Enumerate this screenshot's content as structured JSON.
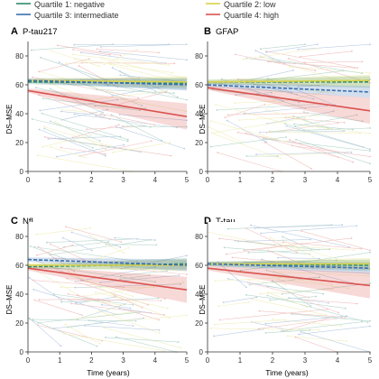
{
  "legend": {
    "items": [
      {
        "label": "Quartile 1: negative",
        "color": "#2e8b6e"
      },
      {
        "label": "Quartile 2: low",
        "color": "#d8d24a"
      },
      {
        "label": "Quartile 3: intermediate",
        "color": "#3a6fb0"
      },
      {
        "label": "Quartile 4: high",
        "color": "#d9534f"
      }
    ]
  },
  "x_axis_label": "Time (years)",
  "y_axis_label": "DS–MSE",
  "chart_data": [
    {
      "type": "line",
      "letter": "A",
      "title": "P-tau217",
      "xlim": [
        0,
        5
      ],
      "ylim": [
        0,
        90
      ],
      "xticks": [
        0,
        1,
        2,
        3,
        4,
        5
      ],
      "yticks": [
        0,
        20,
        40,
        60,
        80
      ],
      "series": [
        {
          "name": "Quartile 1: negative",
          "color": "#2e8b6e",
          "x": [
            0,
            5
          ],
          "values": [
            62,
            61
          ]
        },
        {
          "name": "Quartile 2: low",
          "color": "#d8d24a",
          "x": [
            0,
            5
          ],
          "values": [
            63,
            62
          ]
        },
        {
          "name": "Quartile 3: intermediate",
          "color": "#3a6fb0",
          "x": [
            0,
            5
          ],
          "values": [
            63,
            60
          ]
        },
        {
          "name": "Quartile 4: high",
          "color": "#d9534f",
          "x": [
            0,
            5
          ],
          "values": [
            56,
            38
          ]
        }
      ]
    },
    {
      "type": "line",
      "letter": "B",
      "title": "GFAP",
      "xlim": [
        0,
        5
      ],
      "ylim": [
        0,
        90
      ],
      "xticks": [
        0,
        1,
        2,
        3,
        4,
        5
      ],
      "yticks": [
        0,
        20,
        40,
        60,
        80
      ],
      "series": [
        {
          "name": "Quartile 1: negative",
          "color": "#2e8b6e",
          "x": [
            0,
            5
          ],
          "values": [
            62,
            62
          ]
        },
        {
          "name": "Quartile 2: low",
          "color": "#d8d24a",
          "x": [
            0,
            5
          ],
          "values": [
            62,
            63
          ]
        },
        {
          "name": "Quartile 3: intermediate",
          "color": "#3a6fb0",
          "x": [
            0,
            5
          ],
          "values": [
            60,
            55
          ]
        },
        {
          "name": "Quartile 4: high",
          "color": "#d9534f",
          "x": [
            0,
            5
          ],
          "values": [
            58,
            42
          ]
        }
      ]
    },
    {
      "type": "line",
      "letter": "C",
      "title": "NfL",
      "xlim": [
        0,
        5
      ],
      "ylim": [
        0,
        90
      ],
      "xticks": [
        0,
        1,
        2,
        3,
        4,
        5
      ],
      "yticks": [
        0,
        20,
        40,
        60,
        80
      ],
      "series": [
        {
          "name": "Quartile 1: negative",
          "color": "#2e8b6e",
          "x": [
            0,
            5
          ],
          "values": [
            59,
            61
          ]
        },
        {
          "name": "Quartile 2: low",
          "color": "#d8d24a",
          "x": [
            0,
            5
          ],
          "values": [
            60,
            60
          ]
        },
        {
          "name": "Quartile 3: intermediate",
          "color": "#3a6fb0",
          "x": [
            0,
            5
          ],
          "values": [
            64,
            60
          ]
        },
        {
          "name": "Quartile 4: high",
          "color": "#d9534f",
          "x": [
            0,
            5
          ],
          "values": [
            58,
            43
          ]
        }
      ]
    },
    {
      "type": "line",
      "letter": "D",
      "title": "T-tau",
      "xlim": [
        0,
        5
      ],
      "ylim": [
        0,
        90
      ],
      "xticks": [
        0,
        1,
        2,
        3,
        4,
        5
      ],
      "yticks": [
        0,
        20,
        40,
        60,
        80
      ],
      "series": [
        {
          "name": "Quartile 1: negative",
          "color": "#2e8b6e",
          "x": [
            0,
            5
          ],
          "values": [
            61,
            60
          ]
        },
        {
          "name": "Quartile 2: low",
          "color": "#d8d24a",
          "x": [
            0,
            5
          ],
          "values": [
            61,
            61
          ]
        },
        {
          "name": "Quartile 3: intermediate",
          "color": "#3a6fb0",
          "x": [
            0,
            5
          ],
          "values": [
            61,
            58
          ]
        },
        {
          "name": "Quartile 4: high",
          "color": "#d9534f",
          "x": [
            0,
            5
          ],
          "values": [
            58,
            46
          ]
        }
      ]
    }
  ]
}
